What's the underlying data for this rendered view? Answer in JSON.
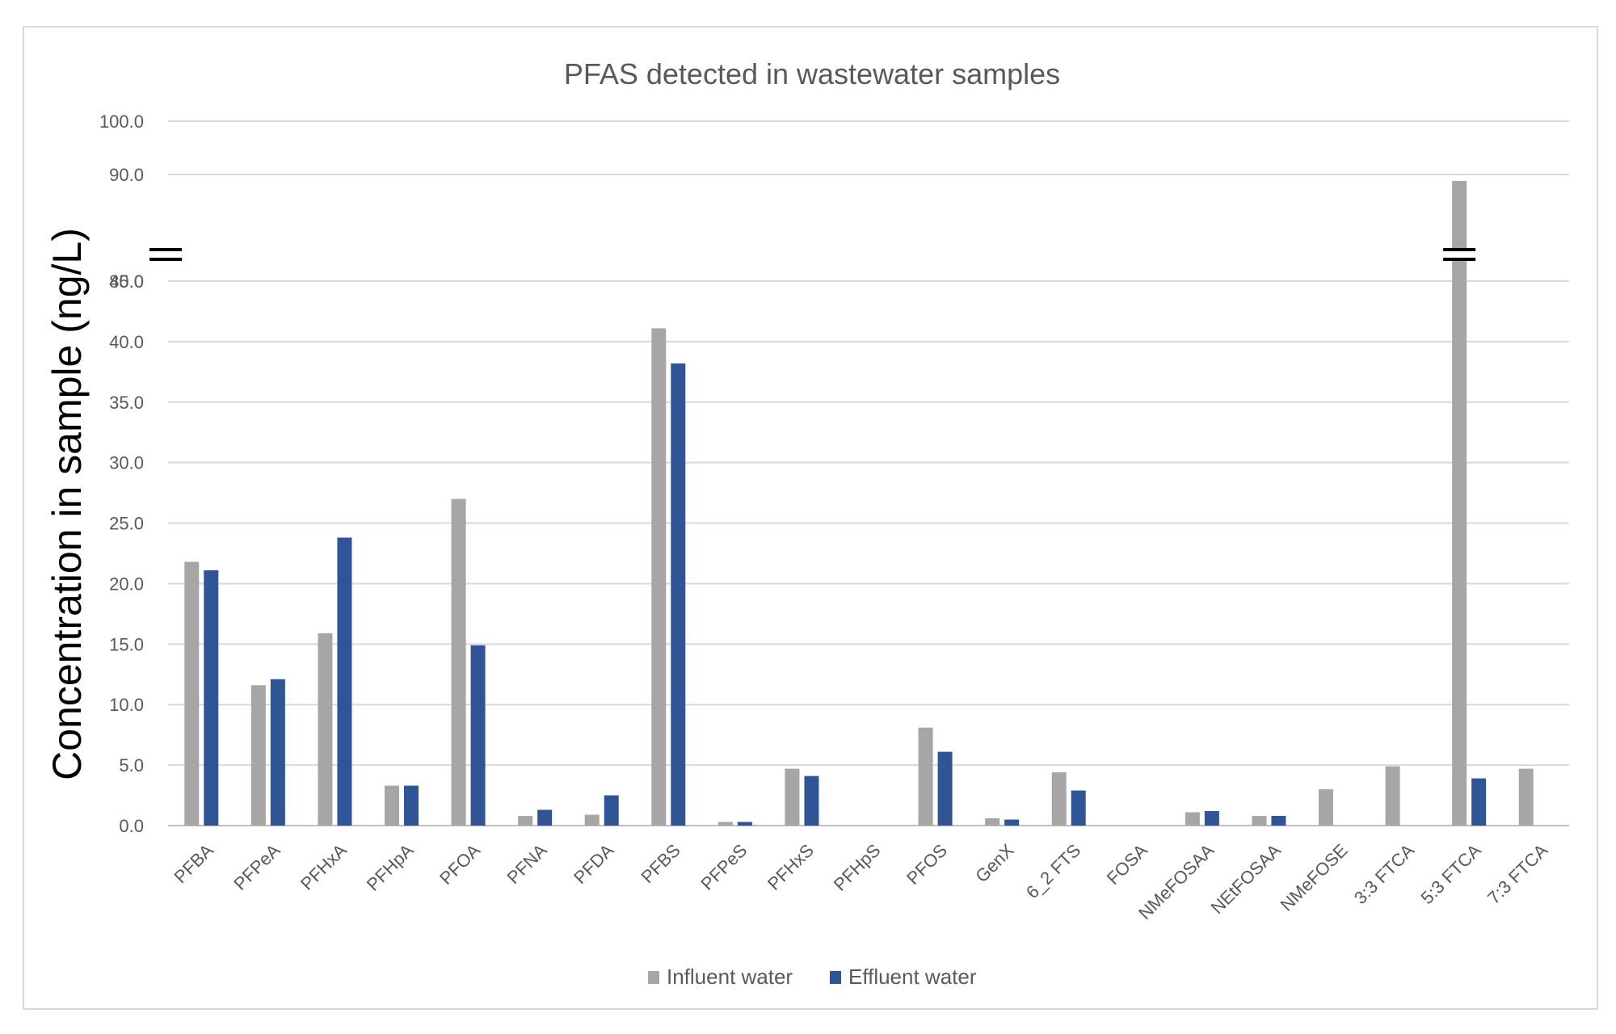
{
  "chart_data": {
    "type": "bar",
    "title": "PFAS detected in wastewater samples",
    "xlabel": "",
    "ylabel": "Concentration in sample (ng/L)",
    "broken_axis": true,
    "y_ticks": [
      "0.0",
      "5.0",
      "10.0",
      "15.0",
      "20.0",
      "25.0",
      "30.0",
      "35.0",
      "40.0",
      "45.0",
      "80.0",
      "90.0",
      "100.0"
    ],
    "ylim_lower": [
      0,
      45
    ],
    "ylim_upper": [
      80,
      100
    ],
    "grid": true,
    "legend_position": "bottom",
    "categories": [
      "PFBA",
      "PFPeA",
      "PFHxA",
      "PFHpA",
      "PFOA",
      "PFNA",
      "PFDA",
      "PFBS",
      "PFPeS",
      "PFHxS",
      "PFHpS",
      "PFOS",
      "GenX",
      "6_2 FTS",
      "FOSA",
      "NMeFOSAA",
      "NEtFOSAA",
      "NMeFOSE",
      "3:3 FTCA",
      "5:3 FTCA",
      "7:3 FTCA"
    ],
    "series": [
      {
        "name": "Influent water",
        "color": "#a6a6a6",
        "values": [
          21.8,
          11.6,
          15.9,
          3.3,
          27.0,
          0.8,
          0.9,
          41.1,
          0.3,
          4.7,
          0,
          8.1,
          0.6,
          4.4,
          0,
          1.1,
          0.8,
          3.0,
          4.9,
          88.8,
          4.7
        ]
      },
      {
        "name": "Effluent water",
        "color": "#2f5597",
        "values": [
          21.1,
          12.1,
          23.8,
          3.3,
          14.9,
          1.3,
          2.5,
          38.2,
          0.3,
          4.1,
          0,
          6.1,
          0.5,
          2.9,
          0,
          1.2,
          0.8,
          0,
          0,
          3.9,
          0
        ]
      }
    ]
  }
}
